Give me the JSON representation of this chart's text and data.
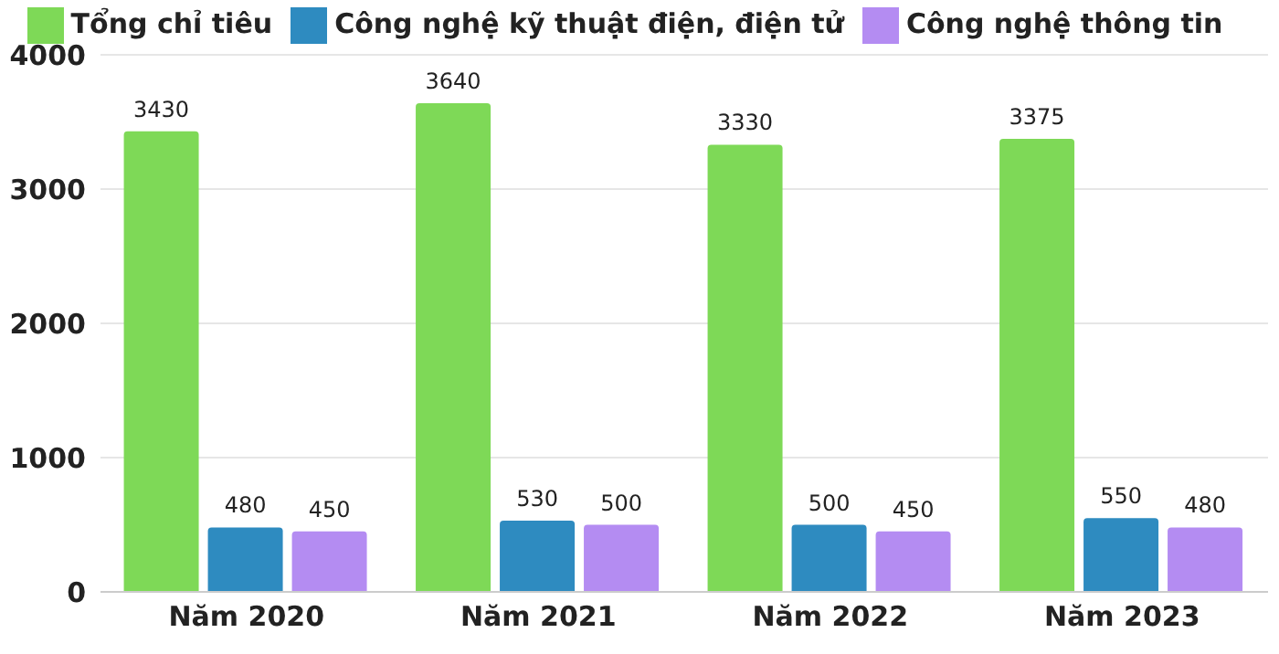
{
  "chart_data": {
    "type": "bar",
    "categories": [
      "Năm 2020",
      "Năm 2021",
      "Năm 2022",
      "Năm 2023"
    ],
    "series": [
      {
        "name": "Tổng chỉ tiêu",
        "color": "#7ed957",
        "values": [
          3430,
          3640,
          3330,
          3375
        ]
      },
      {
        "name": "Công nghệ kỹ thuật điện, điện tử",
        "color": "#2e8bc0",
        "values": [
          480,
          530,
          500,
          550
        ]
      },
      {
        "name": "Công nghệ thông tin",
        "color": "#b48cf2",
        "values": [
          450,
          500,
          450,
          480
        ]
      }
    ],
    "ylim": [
      0,
      4000
    ],
    "yticks": [
      0,
      1000,
      2000,
      3000,
      4000
    ],
    "grid": "y",
    "legend": "top",
    "data_labels": true
  }
}
